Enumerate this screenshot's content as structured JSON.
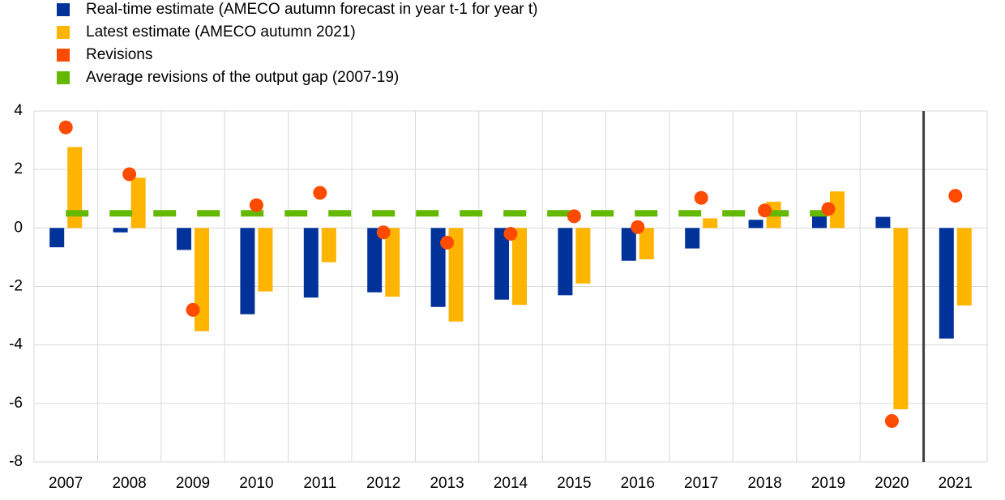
{
  "chart_data": {
    "type": "bar",
    "categories": [
      "2007",
      "2008",
      "2009",
      "2010",
      "2011",
      "2012",
      "2013",
      "2014",
      "2015",
      "2016",
      "2017",
      "2018",
      "2019",
      "2020",
      "2021"
    ],
    "ylim": [
      -8,
      4
    ],
    "yticks": [
      4,
      2,
      0,
      -2,
      -4,
      -6,
      -8
    ],
    "grid": true,
    "series": [
      {
        "name": "Real-time estimate (AMECO autumn forecast in year t-1 for year t)",
        "type": "bar",
        "color": "#003299",
        "values": [
          -0.66,
          -0.15,
          -0.75,
          -2.95,
          -2.38,
          -2.2,
          -2.7,
          -2.45,
          -2.3,
          -1.12,
          -0.7,
          0.28,
          0.6,
          0.38,
          -3.78
        ]
      },
      {
        "name": "Latest estimate (AMECO autumn 2021)",
        "type": "bar",
        "color": "#FFB400",
        "values": [
          2.77,
          1.72,
          -3.53,
          -2.17,
          -1.17,
          -2.35,
          -3.2,
          -2.63,
          -1.9,
          -1.07,
          0.33,
          0.9,
          1.25,
          -6.2,
          -2.65
        ]
      },
      {
        "name": "Revisions",
        "type": "scatter",
        "color": "#FF4B00",
        "values": [
          3.44,
          1.84,
          -2.8,
          0.78,
          1.2,
          -0.15,
          -0.5,
          -0.2,
          0.4,
          0.03,
          1.03,
          0.6,
          0.65,
          -6.6,
          1.1
        ]
      },
      {
        "name": "Average revisions of the output gap (2007-19)",
        "type": "line",
        "color": "#65B800",
        "values": [
          0.5,
          0.5,
          0.5,
          0.5,
          0.5,
          0.5,
          0.5,
          0.5,
          0.5,
          0.5,
          0.5,
          0.5,
          0.5,
          null,
          null
        ]
      }
    ]
  }
}
